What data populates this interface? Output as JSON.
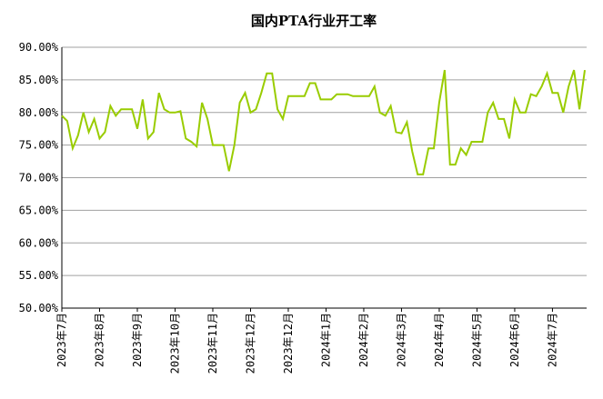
{
  "chart_data": {
    "type": "line",
    "title": "国内PTA行业开工率",
    "categories": [
      "2023年7月",
      null,
      null,
      null,
      null,
      null,
      null,
      "2023年8月",
      null,
      null,
      null,
      null,
      null,
      null,
      "2023年9月",
      null,
      null,
      null,
      null,
      null,
      null,
      "2023年10月",
      null,
      null,
      null,
      null,
      null,
      null,
      "2023年11月",
      null,
      null,
      null,
      null,
      null,
      null,
      "2023年12月",
      null,
      null,
      null,
      null,
      null,
      null,
      "2023年12月",
      null,
      null,
      null,
      null,
      null,
      null,
      "2024年1月",
      null,
      null,
      null,
      null,
      null,
      null,
      "2024年2月",
      null,
      null,
      null,
      null,
      null,
      null,
      "2024年3月",
      null,
      null,
      null,
      null,
      null,
      null,
      "2024年4月",
      null,
      null,
      null,
      null,
      null,
      null,
      "2024年5月",
      null,
      null,
      null,
      null,
      null,
      null,
      "2024年6月",
      null,
      null,
      null,
      null,
      null,
      null,
      "2024年7月",
      null,
      null,
      null,
      null,
      null,
      null
    ],
    "series": [
      {
        "name": null,
        "color": "#99cc00",
        "values": [
          79.5,
          78.7,
          74.5,
          76.5,
          80,
          77,
          79,
          76,
          77,
          81,
          79.5,
          80.5,
          80.5,
          80.5,
          77.5,
          82,
          76,
          77,
          83,
          80.5,
          80,
          80,
          80.2,
          76,
          75.5,
          74.8,
          81.5,
          79,
          75,
          75,
          75,
          71,
          75,
          81.5,
          83,
          80,
          80.5,
          83,
          86,
          86,
          80.5,
          79,
          82.5,
          82.5,
          82.5,
          82.5,
          84.5,
          84.5,
          82,
          82,
          82,
          82.8,
          82.8,
          82.8,
          82.5,
          82.5,
          82.5,
          82.5,
          84,
          80,
          79.5,
          81,
          77,
          76.8,
          78.5,
          74,
          70.5,
          70.5,
          74.5,
          74.5,
          81.5,
          86.5,
          72,
          72,
          74.5,
          73.5,
          75.5,
          75.5,
          75.5,
          80,
          81.5,
          79,
          79,
          76,
          82,
          80,
          80,
          82.8,
          82.5,
          84,
          86,
          83,
          83,
          80,
          84,
          86.5,
          80.5,
          86.5
        ]
      }
    ],
    "ylim": [
      50,
      90
    ],
    "yticks": [
      {
        "value": 50,
        "label": "50.00%"
      },
      {
        "value": 55,
        "label": "55.00%"
      },
      {
        "value": 60,
        "label": "60.00%"
      },
      {
        "value": 65,
        "label": "65.00%"
      },
      {
        "value": 70,
        "label": "70.00%"
      },
      {
        "value": 75,
        "label": "75.00%"
      },
      {
        "value": 80,
        "label": "80.00%"
      },
      {
        "value": 85,
        "label": "85.00%"
      },
      {
        "value": 90,
        "label": "90.00%"
      }
    ],
    "grid": true
  }
}
